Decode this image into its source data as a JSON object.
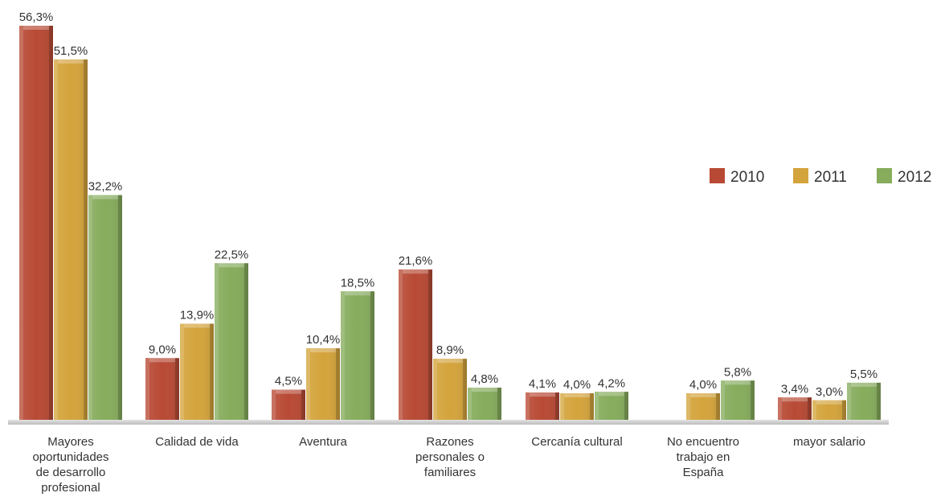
{
  "chart_data": {
    "type": "bar",
    "categories": [
      [
        "Mayores",
        "oportunidades",
        "de desarrollo",
        "profesional"
      ],
      [
        "Calidad de vida"
      ],
      [
        "Aventura"
      ],
      [
        "Razones",
        "personales o",
        "familiares"
      ],
      [
        "Cercanía cultural"
      ],
      [
        "No encuentro",
        "trabajo en",
        "España"
      ],
      [
        "mayor salario"
      ]
    ],
    "series": [
      {
        "name": "2010",
        "color": "#b84a35",
        "values": [
          56.3,
          9.0,
          4.5,
          21.6,
          4.1,
          null,
          3.4
        ],
        "labels": [
          "56,3%",
          "9,0%",
          "4,5%",
          "21,6%",
          "4,1%",
          null,
          "3,4%"
        ]
      },
      {
        "name": "2011",
        "color": "#d4a43c",
        "values": [
          51.5,
          13.9,
          10.4,
          8.9,
          4.0,
          4.0,
          3.0
        ],
        "labels": [
          "51,5%",
          "13,9%",
          "10,4%",
          "8,9%",
          "4,0%",
          "4,0%",
          "3,0%"
        ]
      },
      {
        "name": "2012",
        "color": "#86ac5c",
        "values": [
          32.2,
          22.5,
          18.5,
          4.8,
          4.2,
          5.8,
          5.5
        ],
        "labels": [
          "32,2%",
          "22,5%",
          "18,5%",
          "4,8%",
          "4,2%",
          "5,8%",
          "5,5%"
        ]
      }
    ],
    "ylim": [
      0,
      56.3
    ],
    "grid": false,
    "legend_position": "right"
  }
}
